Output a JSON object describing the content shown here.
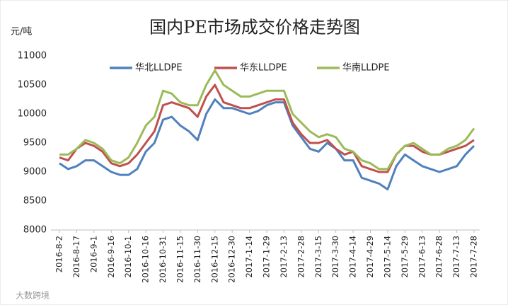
{
  "chart_data": {
    "type": "line",
    "title": "国内PE市场成交价格走势图",
    "y_label": "元/吨",
    "footer": "大数跨境",
    "categories": [
      "2016-8-2",
      null,
      "2016-8-17",
      null,
      "2016-9-1",
      null,
      "2016-9-16",
      null,
      "2016-10-1",
      null,
      "2016-10-16",
      null,
      "2016-10-31",
      null,
      "2016-11-15",
      null,
      "2016-11-30",
      null,
      "2016-12-15",
      null,
      "2016-12-30",
      null,
      "2017-1-14",
      null,
      "2017-1-29",
      null,
      "2017-2-13",
      null,
      "2017-2-28",
      null,
      "2017-3-15",
      null,
      "2017-3-30",
      null,
      "2017-4-14",
      null,
      "2017-4-29",
      null,
      "2017-5-14",
      null,
      "2017-5-29",
      null,
      "2017-6-13",
      null,
      "2017-6-28",
      null,
      "2017-7-13",
      null,
      "2017-7-28"
    ],
    "series": [
      {
        "name": "华北LLDPE",
        "color": "#4f81bd",
        "values": [
          9150,
          9050,
          9100,
          9200,
          9200,
          9100,
          9000,
          8950,
          8950,
          9050,
          9350,
          9500,
          9900,
          9950,
          9800,
          9700,
          9550,
          10000,
          10250,
          10100,
          10100,
          10050,
          10000,
          10050,
          10150,
          10200,
          10200,
          9800,
          9600,
          9400,
          9350,
          9500,
          9400,
          9200,
          9200,
          8900,
          8850,
          8800,
          8700,
          9100,
          9300,
          9200,
          9100,
          9050,
          9000,
          9050,
          9100,
          9300,
          9450
        ]
      },
      {
        "name": "华东LLDPE",
        "color": "#c0504d",
        "values": [
          9250,
          9200,
          9400,
          9500,
          9450,
          9350,
          9150,
          9100,
          9150,
          9300,
          9500,
          9700,
          10150,
          10200,
          10150,
          10100,
          9950,
          10300,
          10500,
          10200,
          10150,
          10100,
          10100,
          10150,
          10200,
          10250,
          10250,
          9850,
          9650,
          9500,
          9500,
          9550,
          9400,
          9300,
          9350,
          9100,
          9050,
          9000,
          9000,
          9300,
          9450,
          9450,
          9350,
          9300,
          9300,
          9350,
          9400,
          9450,
          9550
        ]
      },
      {
        "name": "华南LLDPE",
        "color": "#9bbb59",
        "values": [
          9300,
          9300,
          9400,
          9550,
          9500,
          9400,
          9200,
          9150,
          9250,
          9500,
          9800,
          9950,
          10400,
          10350,
          10200,
          10150,
          10150,
          10500,
          10750,
          10500,
          10400,
          10300,
          10300,
          10350,
          10400,
          10400,
          10400,
          10000,
          9850,
          9700,
          9600,
          9650,
          9600,
          9400,
          9350,
          9200,
          9150,
          9050,
          9050,
          9300,
          9450,
          9500,
          9400,
          9300,
          9300,
          9400,
          9450,
          9550,
          9750
        ]
      }
    ],
    "ylim": [
      8000,
      11000
    ],
    "yticks": [
      8000,
      8500,
      9000,
      9500,
      10000,
      10500,
      11000
    ],
    "grid": false,
    "legend": "top"
  }
}
